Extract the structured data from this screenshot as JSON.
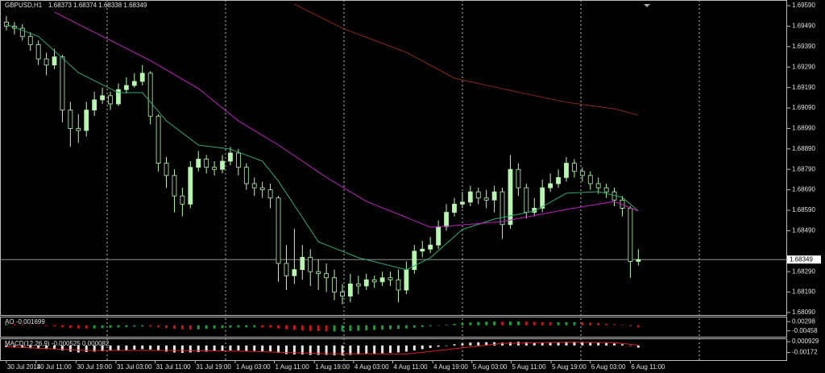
{
  "chart_data": {
    "type": "candlestick",
    "title": "GBPUSD,H1",
    "subtitle": "1.68373 1.68374 1.68338 1.68349",
    "up_color": "#b8f5b0",
    "down_color": "#b8f5b0",
    "open": [
      1.6951,
      1.6949,
      1.6948,
      1.6944,
      1.694,
      1.6933,
      1.693,
      1.6934,
      1.6908,
      1.6899,
      1.6898,
      1.6908,
      1.6913,
      1.6915,
      1.6911,
      1.6918,
      1.692,
      1.6922,
      1.6926,
      1.6905,
      1.6882,
      1.6876,
      1.6866,
      1.6862,
      1.688,
      1.6884,
      1.688,
      1.6879,
      1.6883,
      1.6887,
      1.688,
      1.6872,
      1.687,
      1.6869,
      1.6865,
      1.6833,
      1.6827,
      1.683,
      1.6836,
      1.6829,
      1.6828,
      1.6826,
      1.6819,
      1.6817,
      1.6823,
      1.6822,
      1.6825,
      1.6824,
      1.6826,
      1.6825,
      1.682,
      1.683,
      1.6839,
      1.684,
      1.6842,
      1.6851,
      1.6858,
      1.6862,
      1.6863,
      1.6868,
      1.6865,
      1.6864,
      1.6868,
      1.6852,
      1.6879,
      1.687,
      1.6858,
      1.686,
      1.687,
      1.6872,
      1.6875,
      1.6882,
      1.6878,
      1.6876,
      1.6872,
      1.687,
      1.6868,
      1.6864,
      1.686,
      1.6834
    ],
    "high": [
      1.6954,
      1.6951,
      1.695,
      1.6946,
      1.6942,
      1.6936,
      1.6938,
      1.6935,
      1.6912,
      1.6906,
      1.6912,
      1.6917,
      1.6919,
      1.6917,
      1.6921,
      1.6924,
      1.6926,
      1.693,
      1.6927,
      1.6906,
      1.6885,
      1.6879,
      1.687,
      1.6883,
      1.6888,
      1.6886,
      1.6883,
      1.6886,
      1.689,
      1.6889,
      1.6882,
      1.6875,
      1.6873,
      1.6872,
      1.6866,
      1.6842,
      1.685,
      1.6842,
      1.684,
      1.6835,
      1.6833,
      1.683,
      1.6823,
      1.6828,
      1.6827,
      1.6828,
      1.6827,
      1.6829,
      1.6829,
      1.683,
      1.6834,
      1.6842,
      1.6844,
      1.6846,
      1.6854,
      1.6862,
      1.6865,
      1.6868,
      1.6871,
      1.687,
      1.6869,
      1.6871,
      1.687,
      1.6886,
      1.6882,
      1.6872,
      1.6865,
      1.6874,
      1.6877,
      1.6879,
      1.6885,
      1.6884,
      1.688,
      1.6878,
      1.6875,
      1.6872,
      1.687,
      1.6866,
      1.6861,
      1.684
    ],
    "low": [
      1.6947,
      1.6945,
      1.6942,
      1.6937,
      1.693,
      1.6925,
      1.6928,
      1.6902,
      1.689,
      1.6892,
      1.6895,
      1.6905,
      1.6911,
      1.6908,
      1.691,
      1.6916,
      1.6919,
      1.692,
      1.6901,
      1.6878,
      1.687,
      1.6858,
      1.6856,
      1.686,
      1.6878,
      1.6877,
      1.6876,
      1.6877,
      1.6881,
      1.6876,
      1.6869,
      1.6866,
      1.6865,
      1.686,
      1.6824,
      1.682,
      1.6823,
      1.6825,
      1.6822,
      1.682,
      1.6819,
      1.6815,
      1.6813,
      1.6814,
      1.6818,
      1.682,
      1.6821,
      1.6822,
      1.6822,
      1.6814,
      1.6818,
      1.6828,
      1.6836,
      1.6838,
      1.684,
      1.6849,
      1.6856,
      1.686,
      1.6861,
      1.6862,
      1.686,
      1.6858,
      1.6845,
      1.685,
      1.6866,
      1.6855,
      1.6856,
      1.6858,
      1.6868,
      1.687,
      1.6873,
      1.6875,
      1.6873,
      1.6869,
      1.6867,
      1.6865,
      1.6861,
      1.6856,
      1.6826,
      1.6832
    ],
    "close": [
      1.6949,
      1.6948,
      1.6944,
      1.694,
      1.6933,
      1.693,
      1.6934,
      1.6908,
      1.6899,
      1.6898,
      1.6908,
      1.6913,
      1.6915,
      1.6911,
      1.6918,
      1.692,
      1.6922,
      1.6926,
      1.6905,
      1.6882,
      1.6876,
      1.6866,
      1.6862,
      1.688,
      1.6884,
      1.688,
      1.6879,
      1.6883,
      1.6887,
      1.688,
      1.6872,
      1.687,
      1.6869,
      1.6865,
      1.6833,
      1.6827,
      1.683,
      1.6836,
      1.6829,
      1.6828,
      1.6826,
      1.6819,
      1.6817,
      1.6823,
      1.6822,
      1.6825,
      1.6824,
      1.6826,
      1.6825,
      1.682,
      1.683,
      1.6839,
      1.684,
      1.6842,
      1.6851,
      1.6858,
      1.6862,
      1.6863,
      1.6868,
      1.6865,
      1.6864,
      1.6868,
      1.6852,
      1.6879,
      1.687,
      1.6858,
      1.686,
      1.687,
      1.6872,
      1.6875,
      1.6882,
      1.6878,
      1.6876,
      1.6872,
      1.687,
      1.6868,
      1.6864,
      1.686,
      1.6834,
      1.68349
    ],
    "lines": [
      {
        "color": "#2fa870",
        "x": [
          0,
          4,
          9,
          14,
          17,
          20,
          24,
          28,
          32,
          34,
          37,
          39,
          44,
          50,
          53,
          57,
          61,
          66,
          70,
          74,
          77,
          79
        ],
        "values": [
          1.69499,
          1.6944,
          1.69263,
          1.69165,
          1.69165,
          1.69027,
          1.68909,
          1.68889,
          1.6883,
          1.68732,
          1.68555,
          1.68436,
          1.68358,
          1.68299,
          1.68358,
          1.68496,
          1.68547,
          1.68586,
          1.68673,
          1.68681,
          1.68653,
          1.68586
        ]
      },
      {
        "color": "#c020c0",
        "x": [
          6,
          9,
          14,
          18,
          24,
          29,
          34,
          40,
          45,
          50,
          53,
          56,
          62,
          70,
          76,
          79
        ],
        "values": [
          1.69559,
          1.69499,
          1.69401,
          1.69322,
          1.69185,
          1.69027,
          1.68909,
          1.68751,
          1.68633,
          1.68555,
          1.68507,
          1.68515,
          1.68535,
          1.68594,
          1.68633,
          1.68586
        ]
      },
      {
        "color": "#8b2a1a",
        "x": [
          36,
          42,
          50,
          56,
          62,
          70,
          76,
          79
        ],
        "values": [
          1.69598,
          1.6948,
          1.69362,
          1.69236,
          1.69184,
          1.69118,
          1.69086,
          1.69055
        ]
      }
    ],
    "last_price": 1.68349,
    "xlim": [
      -0.8,
      97.6
    ],
    "ylim": [
      1.68074,
      1.69618
    ],
    "yticks": [
      {
        "value": 1.6959,
        "label": "1.69590"
      },
      {
        "value": 1.6949,
        "label": "1.69490"
      },
      {
        "value": 1.6939,
        "label": "1.69390"
      },
      {
        "value": 1.6929,
        "label": "1.69290"
      },
      {
        "value": 1.6919,
        "label": "1.69190"
      },
      {
        "value": 1.6909,
        "label": "1.69090"
      },
      {
        "value": 1.6899,
        "label": "1.68990"
      },
      {
        "value": 1.6889,
        "label": "1.68890"
      },
      {
        "value": 1.6879,
        "label": "1.68790"
      },
      {
        "value": 1.6869,
        "label": "1.68690"
      },
      {
        "value": 1.6859,
        "label": "1.68590"
      },
      {
        "value": 1.6849,
        "label": "1.68490"
      },
      {
        "value": 1.6829,
        "label": "1.68290"
      },
      {
        "value": 1.6819,
        "label": "1.68190"
      },
      {
        "value": 1.6809,
        "label": "1.68090"
      }
    ],
    "xticks": [
      {
        "value": 0,
        "label": "30 Jul 2014"
      },
      {
        "value": 3.7,
        "label": "30 Jul 11:00"
      },
      {
        "value": 8.7,
        "label": "30 Jul 19:00"
      },
      {
        "value": 13.7,
        "label": "31 Jul 03:00"
      },
      {
        "value": 18.6,
        "label": "31 Jul 11:00"
      },
      {
        "value": 23.6,
        "label": "31 Jul 19:00"
      },
      {
        "value": 28.6,
        "label": "1 Aug 03:00"
      },
      {
        "value": 33.5,
        "label": "1 Aug 11:00"
      },
      {
        "value": 38.5,
        "label": "1 Aug 19:00"
      },
      {
        "value": 43.4,
        "label": "4 Aug 03:00"
      },
      {
        "value": 48.3,
        "label": "4 Aug 11:00"
      },
      {
        "value": 53.3,
        "label": "4 Aug 19:00"
      },
      {
        "value": 58.2,
        "label": "5 Aug 03:00"
      },
      {
        "value": 63.1,
        "label": "5 Aug 11:00"
      },
      {
        "value": 68.1,
        "label": "5 Aug 19:00"
      },
      {
        "value": 73.0,
        "label": "6 Aug 03:00"
      },
      {
        "value": 78.0,
        "label": "6 Aug 11:00"
      }
    ],
    "ao": {
      "title": "AO -0.001699",
      "up_color": "#1e9e3a",
      "down_color": "#c01818",
      "values": [
        0.001,
        0.0008,
        0.0005,
        0.0002,
        -0.0002,
        -0.0006,
        -0.001,
        -0.0016,
        -0.0022,
        -0.0026,
        -0.0027,
        -0.0026,
        -0.0024,
        -0.0021,
        -0.0018,
        -0.0015,
        -0.0012,
        -0.001,
        -0.0012,
        -0.0018,
        -0.0024,
        -0.003,
        -0.0034,
        -0.0035,
        -0.0033,
        -0.003,
        -0.0027,
        -0.0024,
        -0.002,
        -0.0018,
        -0.0017,
        -0.0017,
        -0.0018,
        -0.0019,
        -0.0026,
        -0.0033,
        -0.0039,
        -0.0043,
        -0.0046,
        -0.0048,
        -0.005,
        -0.005,
        -0.0049,
        -0.0047,
        -0.0045,
        -0.0042,
        -0.0039,
        -0.0036,
        -0.0033,
        -0.003,
        -0.0026,
        -0.002,
        -0.0014,
        -0.0008,
        -0.0002,
        0.0005,
        0.0012,
        0.0018,
        0.0023,
        0.0027,
        0.0029,
        0.003,
        0.0029,
        0.003,
        0.0031,
        0.003,
        0.0028,
        0.0026,
        0.0025,
        0.0025,
        0.0026,
        0.0026,
        0.0025,
        0.0022,
        0.0018,
        0.0013,
        0.0008,
        0.0002,
        -0.0008,
        -0.001699
      ],
      "ylim": [
        -0.01007,
        0.00642
      ],
      "yticks": [
        0.00298,
        -0.00458
      ]
    },
    "macd": {
      "title": "MACD(12,26,9) -0.000525 0.000082",
      "color": "#e8e8e8",
      "signal_color": "#e02020",
      "values": [
        -0.0004,
        -0.0005,
        -0.0006,
        -0.0007,
        -0.0008,
        -0.0009,
        -0.0009,
        -0.0012,
        -0.0015,
        -0.0017,
        -0.0016,
        -0.0015,
        -0.0014,
        -0.0013,
        -0.0012,
        -0.0011,
        -0.001,
        -0.0009,
        -0.001,
        -0.0013,
        -0.0015,
        -0.0017,
        -0.0018,
        -0.0017,
        -0.0016,
        -0.0015,
        -0.0014,
        -0.0013,
        -0.0012,
        -0.0012,
        -0.0013,
        -0.0013,
        -0.0014,
        -0.0014,
        -0.0018,
        -0.0021,
        -0.0022,
        -0.0022,
        -0.0023,
        -0.0023,
        -0.0023,
        -0.0024,
        -0.0024,
        -0.0023,
        -0.0022,
        -0.0021,
        -0.002,
        -0.0019,
        -0.0018,
        -0.0017,
        -0.0015,
        -0.0012,
        -0.0009,
        -0.0006,
        -0.0003,
        0.0,
        0.0003,
        0.0005,
        0.0007,
        0.0008,
        0.0008,
        0.0008,
        0.0007,
        0.0008,
        0.0009,
        0.0008,
        0.0007,
        0.0007,
        0.0008,
        0.0008,
        0.0009,
        0.0009,
        0.0009,
        0.0008,
        0.0007,
        0.0006,
        0.0005,
        0.0003,
        0.0,
        -0.000525
      ],
      "signal_x": [
        0,
        10,
        20,
        30,
        40,
        50,
        56,
        62,
        70,
        76,
        79
      ],
      "signal": [
        -0.0003,
        -0.0012,
        -0.0012,
        -0.0014,
        -0.002,
        -0.0021,
        -0.0008,
        0.0005,
        0.0008,
        0.0007,
        8.2e-05
      ],
      "ylim": [
        -0.00376,
        0.00154
      ],
      "yticks": [
        0.000929,
        -0.00172
      ]
    }
  }
}
